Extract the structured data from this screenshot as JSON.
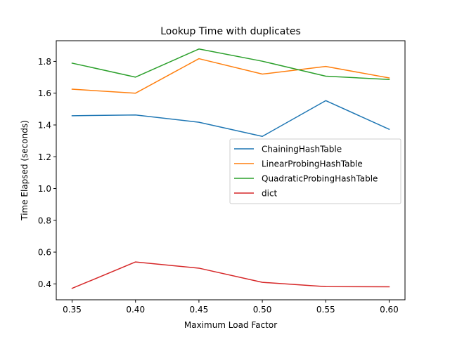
{
  "chart_data": {
    "type": "line",
    "title": "Lookup Time with duplicates",
    "xlabel": "Maximum Load Factor",
    "ylabel": "Time Elapsed (seconds)",
    "x": [
      0.35,
      0.4,
      0.45,
      0.5,
      0.55,
      0.6
    ],
    "x_tick_labels": [
      "0.35",
      "0.40",
      "0.45",
      "0.50",
      "0.55",
      "0.60"
    ],
    "y_ticks": [
      0.4,
      0.6,
      0.8,
      1.0,
      1.2,
      1.4,
      1.6,
      1.8
    ],
    "y_tick_labels": [
      "0.4",
      "0.6",
      "0.8",
      "1.0",
      "1.2",
      "1.4",
      "1.6",
      "1.8"
    ],
    "xlim": [
      0.3375,
      0.6125
    ],
    "ylim": [
      0.3,
      1.93
    ],
    "grid": false,
    "legend_position": "center-right",
    "series": [
      {
        "name": "ChainingHashTable",
        "color": "#1f77b4",
        "values": [
          1.458,
          1.463,
          1.417,
          1.328,
          1.553,
          1.373
        ]
      },
      {
        "name": "LinearProbingHashTable",
        "color": "#ff7f0e",
        "values": [
          1.625,
          1.6,
          1.817,
          1.72,
          1.768,
          1.696
        ]
      },
      {
        "name": "QuadraticProbingHashTable",
        "color": "#2ca02c",
        "values": [
          1.789,
          1.701,
          1.878,
          1.801,
          1.707,
          1.686
        ]
      },
      {
        "name": "dict",
        "color": "#d62728",
        "values": [
          0.372,
          0.538,
          0.499,
          0.41,
          0.383,
          0.382
        ]
      }
    ]
  }
}
